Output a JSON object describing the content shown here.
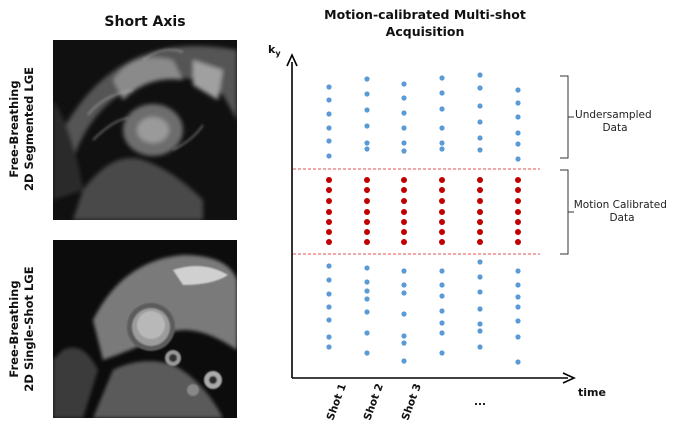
{
  "left": {
    "title": "Short Axis",
    "row1_label": [
      "Free-Breathing",
      "2D Segmented LGE"
    ],
    "row2_label": [
      "Free-Breathing",
      "2D Single-Shot LGE"
    ]
  },
  "right": {
    "title_line1": "Motion-calibrated Multi-shot",
    "title_line2": "Acquisition",
    "y_axis_label": "k",
    "y_axis_subscript": "y",
    "x_axis_label": "time",
    "shot_labels": [
      "Shot 1",
      "Shot 2",
      "Shot 3"
    ],
    "ellipsis": "...",
    "brace1_label": [
      "Undersampled",
      "Data"
    ],
    "brace2_label": [
      "Motion Calibrated",
      "Data"
    ]
  },
  "colors": {
    "blue_dot": "#5b9bd5",
    "red_dot": "#c00000",
    "dashed_line": "#e05050"
  },
  "icons": {
    "image1": "mri-segmented-lge-image",
    "image2": "mri-single-shot-lge-image"
  }
}
